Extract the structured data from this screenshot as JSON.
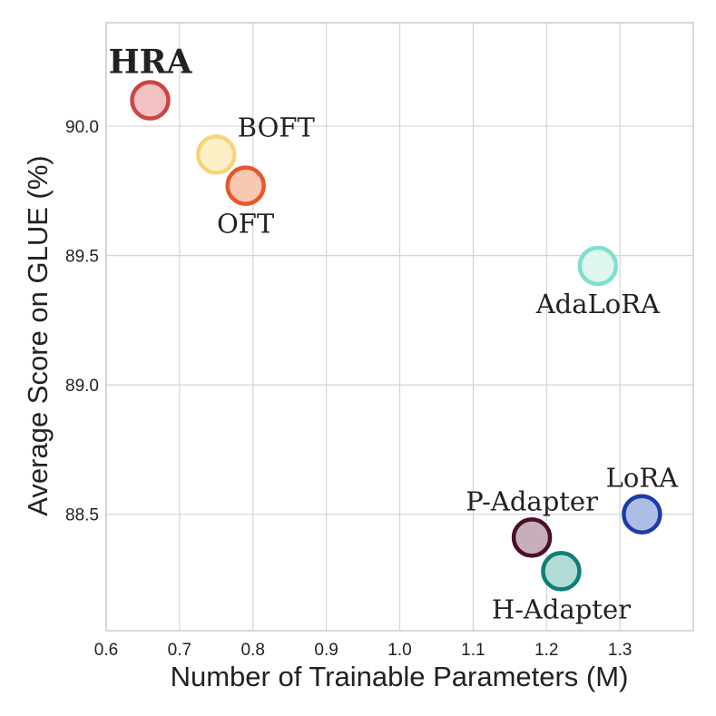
{
  "chart_data": {
    "type": "scatter",
    "title": "",
    "xlabel": "Number of Trainable Parameters (M)",
    "ylabel": "Average Score on GLUE (%)",
    "xlim": [
      0.6,
      1.4
    ],
    "ylim": [
      88.05,
      90.4
    ],
    "xticks": [
      "0.6",
      "0.7",
      "0.8",
      "0.9",
      "1.0",
      "1.1",
      "1.2",
      "1.3"
    ],
    "yticks": [
      "88.5",
      "89.0",
      "89.5",
      "90.0"
    ],
    "grid": true,
    "points": [
      {
        "label": "HRA",
        "x": 0.66,
        "y": 90.1,
        "edge": "#cc4444",
        "fill": "#f2c2c2",
        "highlight": true,
        "label_color": "#b22222",
        "label_pos": "above"
      },
      {
        "label": "BOFT",
        "x": 0.75,
        "y": 89.89,
        "edge": "#f7d47a",
        "fill": "#fdf0c6",
        "highlight": false,
        "label_color": "#222222",
        "label_pos": "upper-right"
      },
      {
        "label": "OFT",
        "x": 0.79,
        "y": 89.77,
        "edge": "#e8562a",
        "fill": "#f8c8b4",
        "highlight": false,
        "label_color": "#222222",
        "label_pos": "below"
      },
      {
        "label": "AdaLoRA",
        "x": 1.27,
        "y": 89.46,
        "edge": "#7ee0d0",
        "fill": "#dff6f1",
        "highlight": false,
        "label_color": "#222222",
        "label_pos": "below"
      },
      {
        "label": "LoRA",
        "x": 1.33,
        "y": 88.5,
        "edge": "#1a3da8",
        "fill": "#aebde4",
        "highlight": false,
        "label_color": "#222222",
        "label_pos": "above"
      },
      {
        "label": "P-Adapter",
        "x": 1.18,
        "y": 88.41,
        "edge": "#4a0f2a",
        "fill": "#c7aebb",
        "highlight": false,
        "label_color": "#222222",
        "label_pos": "above"
      },
      {
        "label": "H-Adapter",
        "x": 1.22,
        "y": 88.28,
        "edge": "#0e7f74",
        "fill": "#b2dbd6",
        "highlight": false,
        "label_color": "#222222",
        "label_pos": "below"
      }
    ]
  }
}
